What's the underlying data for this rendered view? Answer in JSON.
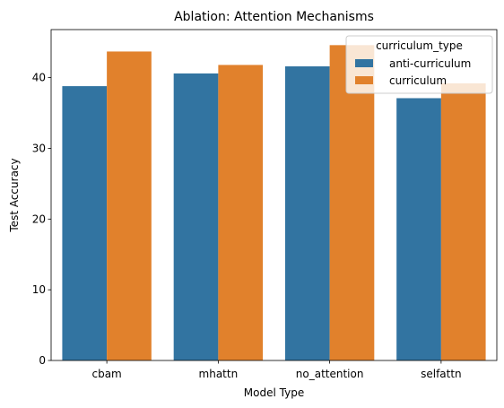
{
  "chart_data": {
    "type": "bar",
    "title": "Ablation: Attention Mechanisms",
    "xlabel": "Model Type",
    "ylabel": "Test Accuracy",
    "categories": [
      "cbam",
      "mhattn",
      "no_attention",
      "selfattn"
    ],
    "series": [
      {
        "name": "anti-curriculum",
        "color": "#3274a1",
        "values": [
          38.8,
          40.6,
          41.6,
          37.1
        ]
      },
      {
        "name": "curriculum",
        "color": "#e1812c",
        "values": [
          43.7,
          41.8,
          44.6,
          39.2
        ]
      }
    ],
    "ylim": [
      0,
      46.8
    ],
    "yticks": [
      0,
      10,
      20,
      30,
      40
    ],
    "grid": false,
    "legend": {
      "title": "curriculum_type",
      "placement": "top-right"
    }
  }
}
